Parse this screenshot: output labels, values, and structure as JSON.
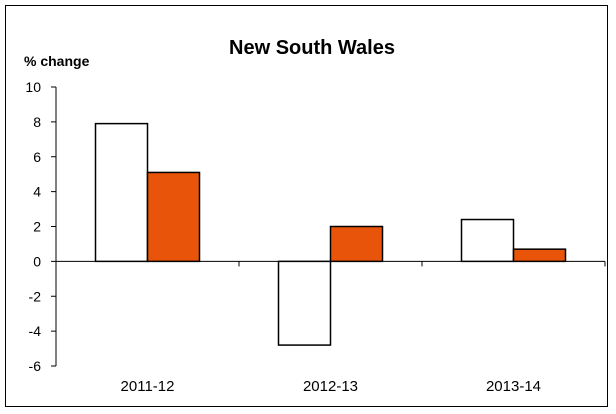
{
  "chart_data": {
    "type": "bar",
    "title": "New South Wales",
    "xlabel": "",
    "ylabel": "% change",
    "ylim": [
      -6,
      10
    ],
    "yticks": [
      10,
      8,
      6,
      4,
      2,
      0,
      -2,
      -4,
      -6
    ],
    "ytick_labels": [
      "10",
      "8",
      "6",
      "4",
      "2",
      "0",
      "-2",
      "-4",
      "-6"
    ],
    "categories": [
      "2011-12",
      "2012-13",
      "2013-14"
    ],
    "series": [
      {
        "values": [
          7.9,
          -4.8,
          2.4
        ],
        "color": "#ffffff"
      },
      {
        "values": [
          5.1,
          2.0,
          0.7
        ],
        "color": "#e8550a"
      }
    ],
    "grid": false,
    "legend": "none"
  }
}
